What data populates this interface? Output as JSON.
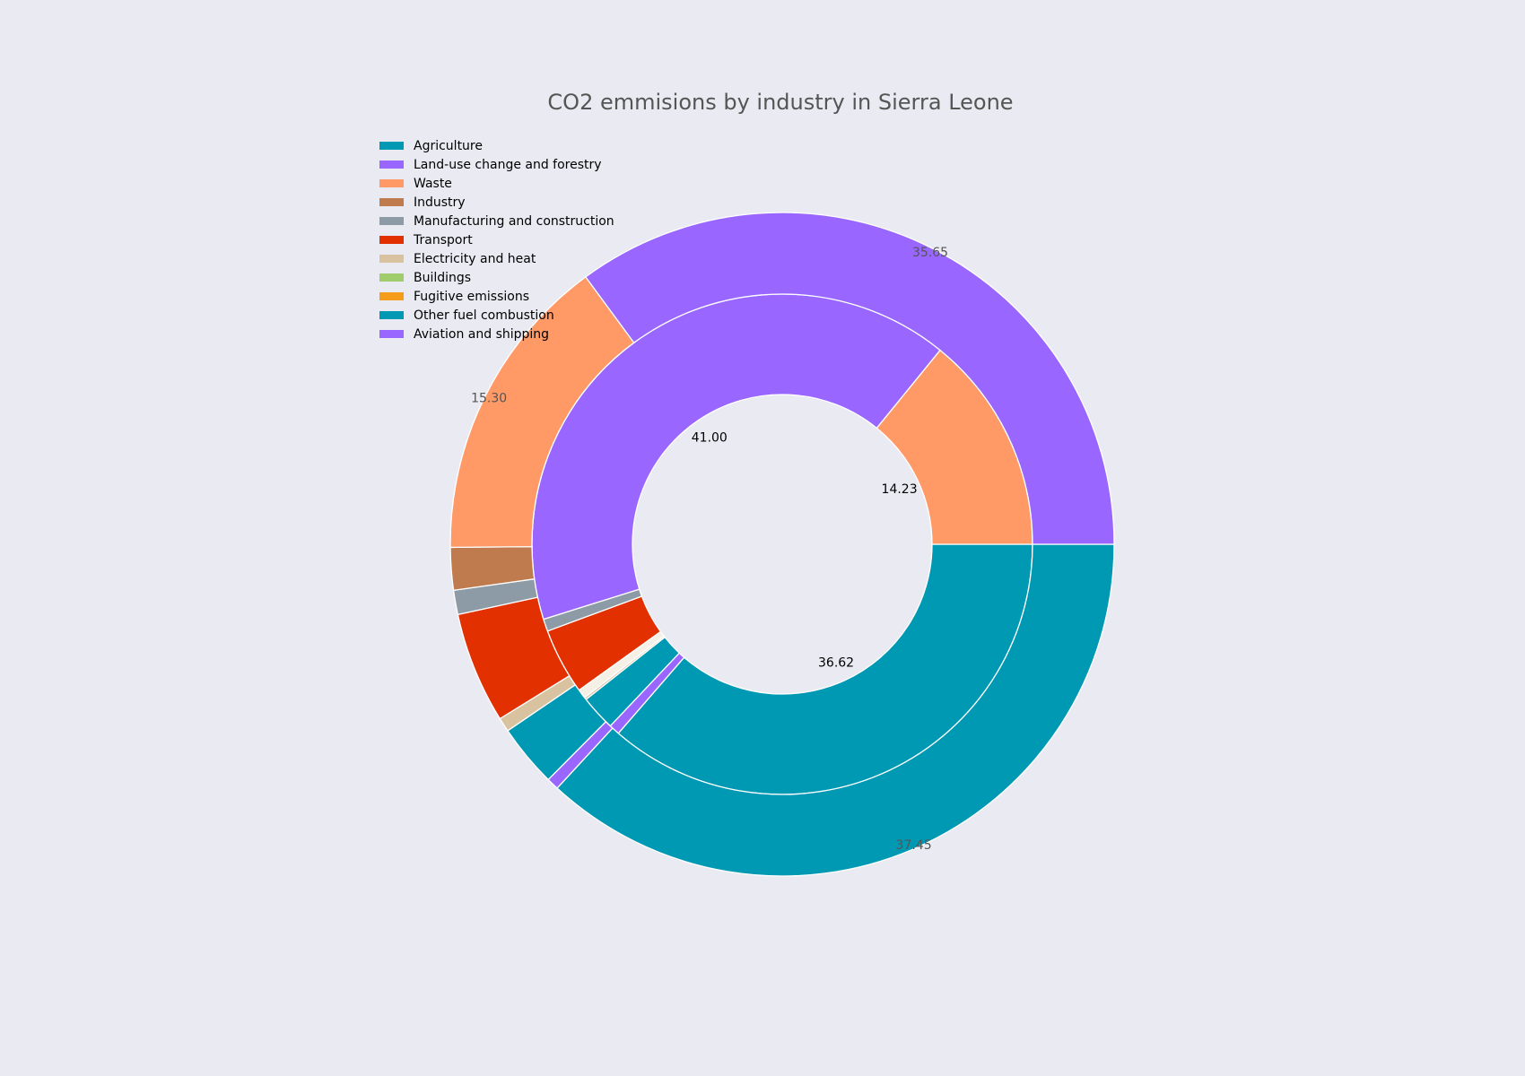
{
  "chart_data": {
    "type": "pie",
    "title": "CO2 emmisions by industry in Sierra Leone",
    "legend_position": "top-left",
    "rings": [
      {
        "name": "inner",
        "values": [
          36.62,
          0.7,
          2.3,
          0.15,
          0.6,
          4.3,
          0.8,
          0.0,
          0.0,
          0.0,
          0.0,
          41.0,
          14.23
        ],
        "colors": [
          "#0099b3",
          "#9966ff",
          "#0099b3",
          "#d9c29f",
          "#f5f0e6",
          "#e33000",
          "#8c9ba5",
          "#bf7a4d",
          "#ff9966",
          "#9966ff",
          "#9966ff",
          "#9966ff",
          "#ff9966"
        ],
        "labels": [
          "36.62",
          "",
          "",
          "",
          "",
          "",
          "",
          "",
          "",
          "",
          "",
          "41.00",
          "14.23"
        ]
      },
      {
        "name": "outer",
        "values": [
          37.45,
          0.6,
          3.1,
          0.7,
          5.5,
          1.2,
          2.1,
          15.3,
          35.65
        ],
        "colors": [
          "#0099b3",
          "#9966ff",
          "#0099b3",
          "#d9c29f",
          "#e33000",
          "#8c9ba5",
          "#bf7a4d",
          "#ff9966",
          "#9966ff"
        ],
        "labels": [
          "37.45",
          "",
          "",
          "",
          "",
          "",
          "",
          "15.30",
          "35.65"
        ]
      }
    ],
    "legend": [
      {
        "label": "Agriculture",
        "color": "#0099b3"
      },
      {
        "label": "Land-use change and forestry",
        "color": "#9966ff"
      },
      {
        "label": "Waste",
        "color": "#ff9966"
      },
      {
        "label": "Industry",
        "color": "#bf7a4d"
      },
      {
        "label": "Manufacturing and construction",
        "color": "#8c9ba5"
      },
      {
        "label": "Transport",
        "color": "#e33000"
      },
      {
        "label": "Electricity and heat",
        "color": "#d9c29f"
      },
      {
        "label": "Buildings",
        "color": "#a0cc6b"
      },
      {
        "label": "Fugitive emissions",
        "color": "#f59c1a"
      },
      {
        "label": "Other fuel combustion",
        "color": "#0099b3"
      },
      {
        "label": "Aviation and shipping",
        "color": "#9966ff"
      }
    ]
  }
}
